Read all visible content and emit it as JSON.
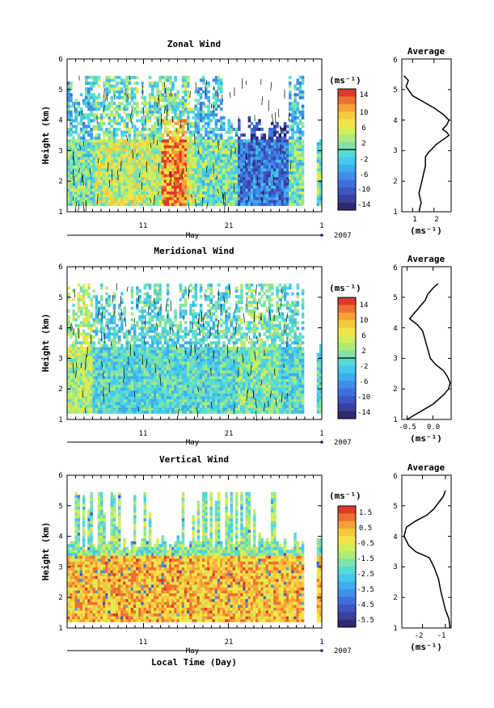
{
  "chart_data": [
    {
      "type": "heatmap",
      "title": "Zonal Wind",
      "ylabel": "Height (km)",
      "y_ticks": [
        "1",
        "2",
        "3",
        "4",
        "5",
        "6"
      ],
      "x_ticks": [
        "11",
        "21",
        "1"
      ],
      "month_label": "May",
      "year_label": "2007",
      "colorbar": {
        "unit": "(ms⁻¹)",
        "ticks": [
          "14",
          "10",
          "6",
          "2",
          "-2",
          "-6",
          "-10",
          "-14"
        ],
        "range": [
          -16,
          16
        ]
      },
      "average_panel": {
        "title": "Average",
        "xlabel": "(ms⁻¹)",
        "x_ticks": [
          "1",
          "2"
        ],
        "y_ticks": [
          "1",
          "2",
          "3",
          "4",
          "5",
          "6"
        ],
        "xlim": [
          0.5,
          2.8
        ],
        "profile": [
          [
            1.3,
            1.0
          ],
          [
            1.4,
            1.3
          ],
          [
            1.3,
            1.6
          ],
          [
            1.4,
            1.9
          ],
          [
            1.5,
            2.2
          ],
          [
            1.6,
            2.5
          ],
          [
            1.6,
            2.8
          ],
          [
            1.75,
            2.95
          ],
          [
            1.9,
            3.05
          ],
          [
            2.1,
            3.2
          ],
          [
            2.5,
            3.4
          ],
          [
            2.7,
            3.5
          ],
          [
            2.6,
            3.6
          ],
          [
            2.4,
            3.7
          ],
          [
            2.6,
            3.85
          ],
          [
            2.7,
            4.0
          ],
          [
            2.4,
            4.2
          ],
          [
            2.0,
            4.4
          ],
          [
            1.5,
            4.6
          ],
          [
            1.0,
            4.8
          ],
          [
            0.8,
            5.0
          ],
          [
            0.7,
            5.1
          ],
          [
            0.8,
            5.3
          ],
          [
            0.6,
            5.45
          ]
        ]
      }
    },
    {
      "type": "heatmap",
      "title": "Meridional Wind",
      "ylabel": "Height (km)",
      "y_ticks": [
        "1",
        "2",
        "3",
        "4",
        "5",
        "6"
      ],
      "x_ticks": [
        "11",
        "21",
        "1"
      ],
      "month_label": "May",
      "year_label": "2007",
      "colorbar": {
        "unit": "(ms⁻¹)",
        "ticks": [
          "14",
          "10",
          "6",
          "2",
          "-2",
          "-6",
          "-10",
          "-14"
        ],
        "range": [
          -16,
          16
        ]
      },
      "average_panel": {
        "title": "Average",
        "xlabel": "(ms⁻¹)",
        "x_ticks": [
          "-0.5",
          "0.0"
        ],
        "y_ticks": [
          "1",
          "2",
          "3",
          "4",
          "5",
          "6"
        ],
        "xlim": [
          -0.6,
          0.35
        ],
        "profile": [
          [
            -0.5,
            1.0
          ],
          [
            -0.3,
            1.2
          ],
          [
            0.0,
            1.5
          ],
          [
            0.2,
            1.8
          ],
          [
            0.3,
            2.0
          ],
          [
            0.33,
            2.2
          ],
          [
            0.28,
            2.4
          ],
          [
            0.2,
            2.6
          ],
          [
            0.05,
            2.8
          ],
          [
            -0.05,
            3.0
          ],
          [
            -0.1,
            3.3
          ],
          [
            -0.15,
            3.6
          ],
          [
            -0.2,
            3.9
          ],
          [
            -0.3,
            4.1
          ],
          [
            -0.45,
            4.3
          ],
          [
            -0.35,
            4.5
          ],
          [
            -0.25,
            4.7
          ],
          [
            -0.15,
            4.9
          ],
          [
            -0.1,
            5.1
          ],
          [
            0.0,
            5.3
          ],
          [
            0.1,
            5.45
          ]
        ]
      }
    },
    {
      "type": "heatmap",
      "title": "Vertical Wind",
      "ylabel": "Height (km)",
      "y_ticks": [
        "1",
        "2",
        "3",
        "4",
        "5",
        "6"
      ],
      "x_ticks": [
        "11",
        "21",
        "1"
      ],
      "month_label": "May",
      "year_label": "2007",
      "xlabel": "Local Time (Day)",
      "colorbar": {
        "unit": "(ms⁻¹)",
        "ticks": [
          "1.5",
          "0.5",
          "-0.5",
          "-1.5",
          "-2.5",
          "-3.5",
          "-4.5",
          "-5.5"
        ],
        "range": [
          -6,
          2
        ]
      },
      "average_panel": {
        "title": "Average",
        "xlabel": "(ms⁻¹)",
        "x_ticks": [
          "-2",
          "-1"
        ],
        "y_ticks": [
          "1",
          "2",
          "3",
          "4",
          "5",
          "6"
        ],
        "xlim": [
          -2.9,
          -0.75
        ],
        "profile": [
          [
            -0.8,
            1.0
          ],
          [
            -0.85,
            1.3
          ],
          [
            -1.0,
            1.6
          ],
          [
            -1.1,
            1.9
          ],
          [
            -1.2,
            2.2
          ],
          [
            -1.3,
            2.6
          ],
          [
            -1.5,
            3.0
          ],
          [
            -1.7,
            3.3
          ],
          [
            -2.3,
            3.5
          ],
          [
            -2.6,
            3.7
          ],
          [
            -2.8,
            4.0
          ],
          [
            -2.7,
            4.3
          ],
          [
            -2.3,
            4.5
          ],
          [
            -1.8,
            4.7
          ],
          [
            -1.5,
            4.9
          ],
          [
            -1.3,
            5.1
          ],
          [
            -1.1,
            5.3
          ],
          [
            -1.0,
            5.5
          ]
        ]
      }
    }
  ]
}
